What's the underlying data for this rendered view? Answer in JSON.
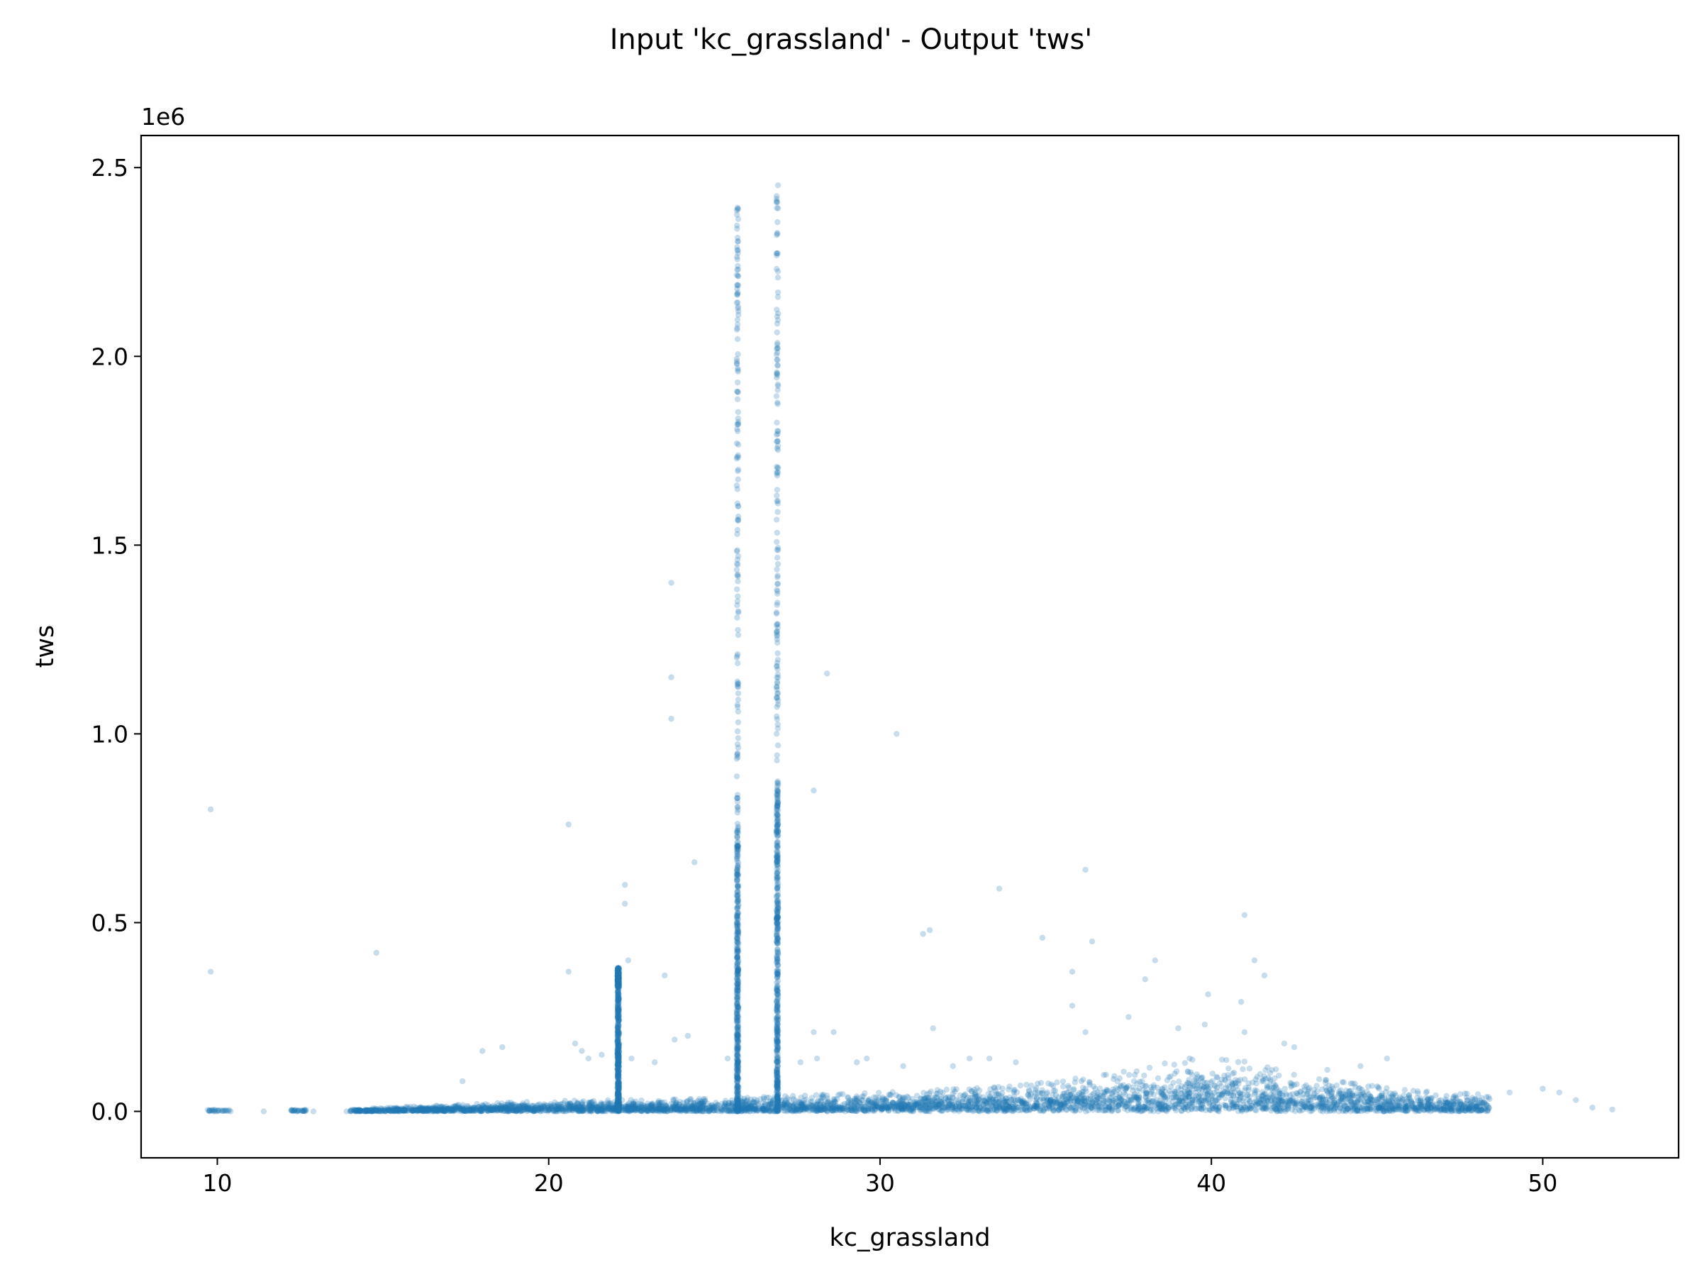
{
  "chart_data": {
    "type": "scatter",
    "title": "Input 'kc_grassland' - Output 'tws'",
    "xlabel": "kc_grassland",
    "ylabel": "tws",
    "y_offset_text": "1e6",
    "xlim": [
      7.7,
      54.1
    ],
    "ylim": [
      -0.123,
      2.585
    ],
    "y_scale_note": "values in units of 1e6",
    "x_ticks": [
      10,
      20,
      30,
      40,
      50
    ],
    "x_tick_labels": [
      "10",
      "20",
      "30",
      "40",
      "50"
    ],
    "y_ticks": [
      0.0,
      0.5,
      1.0,
      1.5,
      2.0,
      2.5
    ],
    "y_tick_labels": [
      "0.0",
      "0.5",
      "1.0",
      "1.5",
      "2.0",
      "2.5"
    ],
    "grid": false,
    "legend": "none",
    "marker_color": "#1f77b4",
    "marker_alpha": 0.25,
    "series": [
      {
        "points_outliers": [
          [
            9.8,
            0.8
          ],
          [
            9.8,
            0.37
          ],
          [
            14.8,
            0.42
          ],
          [
            17.4,
            0.08
          ],
          [
            18.0,
            0.16
          ],
          [
            18.6,
            0.17
          ],
          [
            20.6,
            0.76
          ],
          [
            20.6,
            0.37
          ],
          [
            20.8,
            0.18
          ],
          [
            21.0,
            0.16
          ],
          [
            21.2,
            0.14
          ],
          [
            21.6,
            0.15
          ],
          [
            22.3,
            0.6
          ],
          [
            22.3,
            0.55
          ],
          [
            22.4,
            0.4
          ],
          [
            22.5,
            0.14
          ],
          [
            23.2,
            0.13
          ],
          [
            23.5,
            0.36
          ],
          [
            23.7,
            1.4
          ],
          [
            23.7,
            1.15
          ],
          [
            23.7,
            1.04
          ],
          [
            23.8,
            0.19
          ],
          [
            24.2,
            0.2
          ],
          [
            24.4,
            0.66
          ],
          [
            25.4,
            0.14
          ],
          [
            27.6,
            0.13
          ],
          [
            28.0,
            0.85
          ],
          [
            28.4,
            1.16
          ],
          [
            28.0,
            0.21
          ],
          [
            28.6,
            0.21
          ],
          [
            28.1,
            0.14
          ],
          [
            29.3,
            0.13
          ],
          [
            29.6,
            0.14
          ],
          [
            30.5,
            1.0
          ],
          [
            30.7,
            0.12
          ],
          [
            31.3,
            0.47
          ],
          [
            31.5,
            0.48
          ],
          [
            31.6,
            0.22
          ],
          [
            32.2,
            0.12
          ],
          [
            32.7,
            0.14
          ],
          [
            33.3,
            0.14
          ],
          [
            33.6,
            0.59
          ],
          [
            34.1,
            0.13
          ],
          [
            34.9,
            0.46
          ],
          [
            35.8,
            0.37
          ],
          [
            35.8,
            0.28
          ],
          [
            36.2,
            0.64
          ],
          [
            36.4,
            0.45
          ],
          [
            36.2,
            0.21
          ],
          [
            37.5,
            0.25
          ],
          [
            38.0,
            0.35
          ],
          [
            38.3,
            0.4
          ],
          [
            39.0,
            0.22
          ],
          [
            39.9,
            0.31
          ],
          [
            39.8,
            0.23
          ],
          [
            40.9,
            0.29
          ],
          [
            41.0,
            0.52
          ],
          [
            41.3,
            0.4
          ],
          [
            41.6,
            0.36
          ],
          [
            41.0,
            0.21
          ],
          [
            42.2,
            0.18
          ],
          [
            42.5,
            0.17
          ],
          [
            43.5,
            0.11
          ],
          [
            44.5,
            0.12
          ],
          [
            45.3,
            0.14
          ],
          [
            49.0,
            0.05
          ],
          [
            50.0,
            0.06
          ],
          [
            50.5,
            0.05
          ],
          [
            51.0,
            0.03
          ],
          [
            51.5,
            0.01
          ],
          [
            52.1,
            0.005
          ],
          [
            10.4,
            0.0
          ],
          [
            11.4,
            0.0
          ],
          [
            12.4,
            0.0
          ],
          [
            12.9,
            0.0
          ],
          [
            13.9,
            0.0
          ]
        ],
        "vertical_streaks": [
          {
            "x": 25.7,
            "dense_range": [
              0.0,
              0.75
            ],
            "sparse_range": [
              0.75,
              2.46
            ]
          },
          {
            "x": 26.9,
            "dense_range": [
              0.0,
              0.85
            ],
            "sparse_range": [
              0.85,
              2.46
            ]
          },
          {
            "x": 22.1,
            "dense_range": [
              0.0,
              0.33
            ],
            "sparse_range": [
              0.33,
              0.38
            ]
          }
        ],
        "bulk_band": {
          "x_range": [
            14.0,
            48.4
          ],
          "envelope": [
            [
              14.0,
              0.005
            ],
            [
              17.0,
              0.015
            ],
            [
              20.0,
              0.025
            ],
            [
              25.0,
              0.03
            ],
            [
              30.0,
              0.045
            ],
            [
              34.0,
              0.06
            ],
            [
              37.0,
              0.09
            ],
            [
              39.5,
              0.13
            ],
            [
              41.0,
              0.12
            ],
            [
              43.0,
              0.08
            ],
            [
              46.0,
              0.05
            ],
            [
              48.3,
              0.04
            ]
          ]
        },
        "left_clusters": [
          {
            "x_range": [
              9.7,
              10.4
            ],
            "y": 0.0
          },
          {
            "x_range": [
              12.2,
              12.7
            ],
            "y": 0.0
          }
        ]
      }
    ]
  }
}
